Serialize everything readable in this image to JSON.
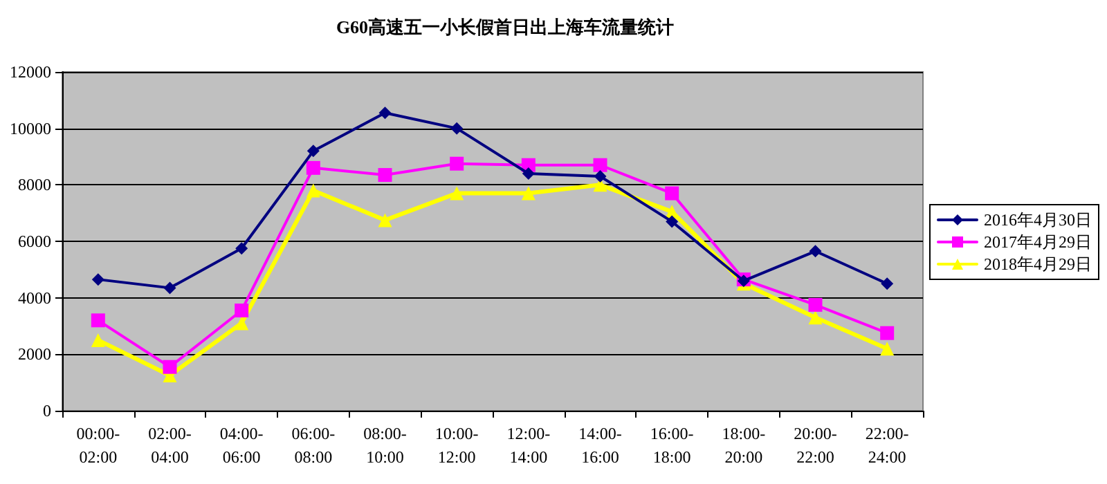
{
  "chart_data": {
    "type": "line",
    "title": "G60高速五一小长假首日出上海车流量统计",
    "categories": [
      "00:00-02:00",
      "02:00-04:00",
      "04:00-06:00",
      "06:00-08:00",
      "08:00-10:00",
      "10:00-12:00",
      "12:00-14:00",
      "14:00-16:00",
      "16:00-18:00",
      "18:00-20:00",
      "20:00-22:00",
      "22:00-24:00"
    ],
    "series": [
      {
        "name": "2016年4月30日",
        "color": "#000080",
        "marker": "diamond",
        "values": [
          4650,
          4350,
          5750,
          9200,
          10550,
          10000,
          8400,
          8300,
          6700,
          4600,
          5650,
          4500
        ]
      },
      {
        "name": "2017年4月29日",
        "color": "#ff00ff",
        "marker": "square",
        "values": [
          3200,
          1550,
          3550,
          8600,
          8350,
          8750,
          8700,
          8700,
          7700,
          4650,
          3750,
          2750
        ]
      },
      {
        "name": "2018年4月29日",
        "color": "#ffff00",
        "marker": "triangle",
        "values": [
          2500,
          1250,
          3100,
          7800,
          6750,
          7700,
          7700,
          8000,
          7050,
          4500,
          3300,
          2200
        ]
      }
    ],
    "ylim": [
      0,
      12000
    ],
    "yticks": [
      0,
      2000,
      4000,
      6000,
      8000,
      10000,
      12000
    ],
    "grid": "y",
    "legend": "right",
    "line_style": "solid"
  }
}
